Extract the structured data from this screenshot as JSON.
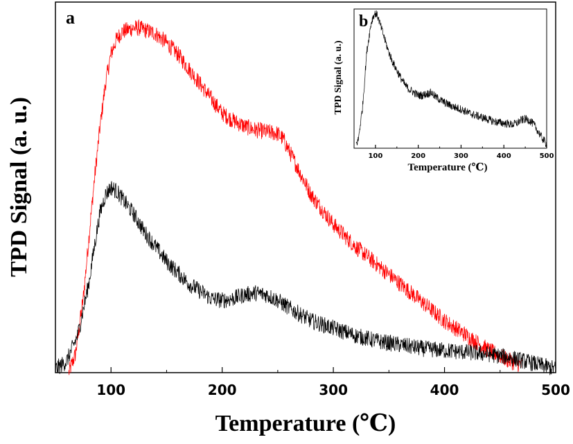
{
  "chart_data": [
    {
      "panel": "a",
      "type": "line",
      "xlabel": "Temperature (℃)",
      "ylabel": "TPD Signal (a. u.)",
      "xlim": [
        50,
        500
      ],
      "ylim": [
        0,
        1
      ],
      "xticks": [
        100,
        200,
        300,
        400,
        500
      ],
      "y_tick_labels": false,
      "series": [
        {
          "color": "#ff0000",
          "x": [
            62,
            68,
            75,
            80,
            85,
            90,
            95,
            100,
            105,
            110,
            115,
            120,
            125,
            130,
            140,
            150,
            160,
            170,
            180,
            190,
            200,
            210,
            220,
            230,
            240,
            250,
            255,
            260,
            270,
            280,
            290,
            300,
            320,
            340,
            360,
            380,
            400,
            420,
            440,
            460,
            470
          ],
          "y": [
            0.0,
            0.05,
            0.2,
            0.36,
            0.52,
            0.66,
            0.78,
            0.86,
            0.9,
            0.92,
            0.925,
            0.93,
            0.93,
            0.925,
            0.915,
            0.89,
            0.86,
            0.82,
            0.78,
            0.74,
            0.7,
            0.68,
            0.665,
            0.655,
            0.65,
            0.645,
            0.63,
            0.6,
            0.54,
            0.48,
            0.44,
            0.4,
            0.34,
            0.29,
            0.24,
            0.19,
            0.14,
            0.1,
            0.06,
            0.03,
            0.02
          ]
        },
        {
          "color": "#000000",
          "x": [
            50,
            60,
            70,
            80,
            85,
            90,
            95,
            100,
            105,
            110,
            120,
            130,
            140,
            150,
            160,
            170,
            180,
            190,
            200,
            210,
            220,
            230,
            240,
            250,
            260,
            280,
            300,
            320,
            340,
            360,
            380,
            400,
            420,
            440,
            460,
            480,
            500
          ],
          "y": [
            0.01,
            0.03,
            0.1,
            0.24,
            0.34,
            0.43,
            0.48,
            0.5,
            0.49,
            0.47,
            0.43,
            0.38,
            0.34,
            0.3,
            0.27,
            0.24,
            0.22,
            0.2,
            0.195,
            0.2,
            0.21,
            0.215,
            0.21,
            0.195,
            0.175,
            0.14,
            0.12,
            0.1,
            0.085,
            0.075,
            0.065,
            0.06,
            0.055,
            0.05,
            0.04,
            0.025,
            0.01
          ]
        }
      ]
    },
    {
      "panel": "b",
      "type": "line",
      "xlabel": "Temperature (℃)",
      "ylabel": "TPD Signal (a. u.)",
      "xlim": [
        50,
        500
      ],
      "ylim": [
        0,
        1
      ],
      "xticks": [
        100,
        200,
        300,
        400,
        500
      ],
      "y_tick_labels": false,
      "series": [
        {
          "color": "#000000",
          "x": [
            55,
            60,
            70,
            80,
            90,
            95,
            100,
            105,
            110,
            120,
            130,
            140,
            150,
            160,
            170,
            180,
            190,
            200,
            210,
            220,
            230,
            240,
            260,
            280,
            300,
            320,
            340,
            360,
            380,
            400,
            420,
            430,
            440,
            450,
            460,
            470,
            480,
            490,
            500
          ],
          "y": [
            0.03,
            0.06,
            0.3,
            0.7,
            0.9,
            0.95,
            0.97,
            0.95,
            0.9,
            0.8,
            0.7,
            0.62,
            0.56,
            0.5,
            0.45,
            0.42,
            0.4,
            0.38,
            0.38,
            0.39,
            0.4,
            0.37,
            0.33,
            0.3,
            0.28,
            0.25,
            0.23,
            0.21,
            0.19,
            0.18,
            0.17,
            0.18,
            0.2,
            0.21,
            0.2,
            0.17,
            0.12,
            0.07,
            0.03
          ]
        }
      ]
    }
  ]
}
